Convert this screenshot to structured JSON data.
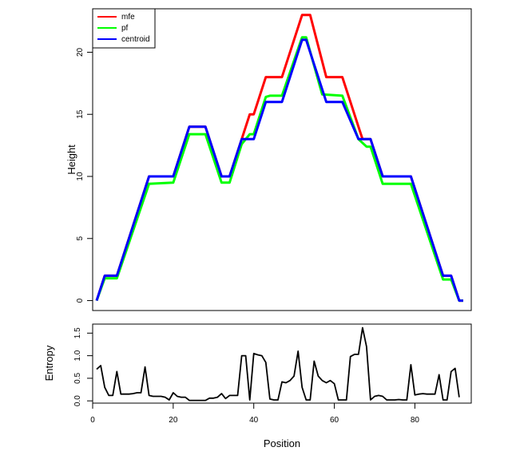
{
  "chart_data": [
    {
      "type": "line",
      "title": "",
      "xlabel": "",
      "ylabel": "Height",
      "xlim": [
        0,
        94
      ],
      "ylim": [
        -0.8,
        23.5
      ],
      "yticks": [
        0,
        5,
        10,
        15,
        20
      ],
      "grid": false,
      "legend_position": "top-left",
      "series": [
        {
          "name": "mfe",
          "color": "#ff0000",
          "points": [
            [
              1,
              0
            ],
            [
              3,
              2
            ],
            [
              6,
              2
            ],
            [
              14,
              10
            ],
            [
              20,
              10
            ],
            [
              24,
              14
            ],
            [
              28,
              14
            ],
            [
              32,
              10
            ],
            [
              34,
              10
            ],
            [
              37,
              13
            ],
            [
              39,
              15
            ],
            [
              40,
              15
            ],
            [
              43,
              18
            ],
            [
              47,
              18
            ],
            [
              52,
              23
            ],
            [
              54,
              23
            ],
            [
              58,
              18
            ],
            [
              62,
              18
            ],
            [
              66,
              14
            ],
            [
              67,
              13
            ],
            [
              69,
              13
            ],
            [
              72,
              10
            ],
            [
              79,
              10
            ],
            [
              87,
              2
            ],
            [
              89,
              2
            ],
            [
              91,
              0
            ],
            [
              92,
              0
            ]
          ]
        },
        {
          "name": "pf",
          "color": "#00ff00",
          "points": [
            [
              1,
              0
            ],
            [
              3,
              1.8
            ],
            [
              6,
              1.8
            ],
            [
              14,
              9.4
            ],
            [
              20,
              9.5
            ],
            [
              24,
              13.4
            ],
            [
              28,
              13.4
            ],
            [
              32,
              9.5
            ],
            [
              34,
              9.5
            ],
            [
              37,
              12.6
            ],
            [
              39,
              13.4
            ],
            [
              40,
              13.4
            ],
            [
              43,
              16.4
            ],
            [
              44,
              16.5
            ],
            [
              47,
              16.5
            ],
            [
              52,
              21.2
            ],
            [
              53,
              21.2
            ],
            [
              57,
              16.6
            ],
            [
              62,
              16.5
            ],
            [
              66,
              13
            ],
            [
              68,
              12.4
            ],
            [
              69,
              12.4
            ],
            [
              72,
              9.4
            ],
            [
              79,
              9.4
            ],
            [
              87,
              1.7
            ],
            [
              89,
              1.7
            ],
            [
              91,
              0
            ],
            [
              92,
              0
            ]
          ]
        },
        {
          "name": "centroid",
          "color": "#0000ff",
          "points": [
            [
              1,
              0
            ],
            [
              3,
              2
            ],
            [
              6,
              2
            ],
            [
              14,
              10
            ],
            [
              20,
              10
            ],
            [
              24,
              14
            ],
            [
              28,
              14
            ],
            [
              32,
              10
            ],
            [
              34,
              10
            ],
            [
              37,
              13
            ],
            [
              40,
              13
            ],
            [
              43,
              16
            ],
            [
              47,
              16
            ],
            [
              52,
              21
            ],
            [
              53,
              21
            ],
            [
              58,
              16
            ],
            [
              62,
              16
            ],
            [
              66,
              13
            ],
            [
              69,
              13
            ],
            [
              72,
              10
            ],
            [
              79,
              10
            ],
            [
              87,
              2
            ],
            [
              89,
              2
            ],
            [
              91,
              0
            ],
            [
              92,
              0
            ]
          ]
        }
      ]
    },
    {
      "type": "line",
      "title": "",
      "xlabel": "Position",
      "ylabel": "Entropy",
      "xlim": [
        0,
        94
      ],
      "ylim": [
        -0.05,
        1.7
      ],
      "xticks": [
        0,
        20,
        40,
        60,
        80
      ],
      "yticks": [
        0.0,
        0.5,
        1.0,
        1.5
      ],
      "grid": false,
      "series": [
        {
          "color": "#000000",
          "points": [
            [
              1,
              0.7
            ],
            [
              2,
              0.78
            ],
            [
              3,
              0.3
            ],
            [
              4,
              0.12
            ],
            [
              5,
              0.12
            ],
            [
              6,
              0.65
            ],
            [
              7,
              0.15
            ],
            [
              8,
              0.15
            ],
            [
              9,
              0.15
            ],
            [
              10,
              0.16
            ],
            [
              11,
              0.18
            ],
            [
              12,
              0.18
            ],
            [
              13,
              0.75
            ],
            [
              14,
              0.12
            ],
            [
              15,
              0.1
            ],
            [
              16,
              0.1
            ],
            [
              17,
              0.1
            ],
            [
              18,
              0.08
            ],
            [
              19,
              0.02
            ],
            [
              20,
              0.18
            ],
            [
              21,
              0.1
            ],
            [
              22,
              0.08
            ],
            [
              23,
              0.08
            ],
            [
              24,
              0.01
            ],
            [
              25,
              0.01
            ],
            [
              26,
              0.01
            ],
            [
              27,
              0.01
            ],
            [
              28,
              0.01
            ],
            [
              29,
              0.06
            ],
            [
              30,
              0.06
            ],
            [
              31,
              0.08
            ],
            [
              32,
              0.16
            ],
            [
              33,
              0.05
            ],
            [
              34,
              0.12
            ],
            [
              35,
              0.12
            ],
            [
              36,
              0.12
            ],
            [
              37,
              1.0
            ],
            [
              38,
              1.0
            ],
            [
              39,
              0.02
            ],
            [
              40,
              1.05
            ],
            [
              41,
              1.02
            ],
            [
              42,
              1.0
            ],
            [
              43,
              0.85
            ],
            [
              44,
              0.04
            ],
            [
              45,
              0.02
            ],
            [
              46,
              0.02
            ],
            [
              47,
              0.42
            ],
            [
              48,
              0.4
            ],
            [
              49,
              0.45
            ],
            [
              50,
              0.55
            ],
            [
              51,
              1.1
            ],
            [
              52,
              0.3
            ],
            [
              53,
              0.02
            ],
            [
              54,
              0.02
            ],
            [
              55,
              0.88
            ],
            [
              56,
              0.55
            ],
            [
              57,
              0.45
            ],
            [
              58,
              0.4
            ],
            [
              59,
              0.45
            ],
            [
              60,
              0.38
            ],
            [
              61,
              0.02
            ],
            [
              62,
              0.02
            ],
            [
              63,
              0.02
            ],
            [
              64,
              0.98
            ],
            [
              65,
              1.03
            ],
            [
              66,
              1.03
            ],
            [
              67,
              1.62
            ],
            [
              68,
              1.2
            ],
            [
              69,
              0.02
            ],
            [
              70,
              0.1
            ],
            [
              71,
              0.12
            ],
            [
              72,
              0.1
            ],
            [
              73,
              0.02
            ],
            [
              74,
              0.02
            ],
            [
              75,
              0.02
            ],
            [
              76,
              0.03
            ],
            [
              77,
              0.02
            ],
            [
              78,
              0.02
            ],
            [
              79,
              0.8
            ],
            [
              80,
              0.13
            ],
            [
              81,
              0.15
            ],
            [
              82,
              0.16
            ],
            [
              83,
              0.15
            ],
            [
              84,
              0.15
            ],
            [
              85,
              0.15
            ],
            [
              86,
              0.58
            ],
            [
              87,
              0.02
            ],
            [
              88,
              0.02
            ],
            [
              89,
              0.65
            ],
            [
              90,
              0.72
            ],
            [
              91,
              0.08
            ]
          ]
        }
      ]
    }
  ]
}
